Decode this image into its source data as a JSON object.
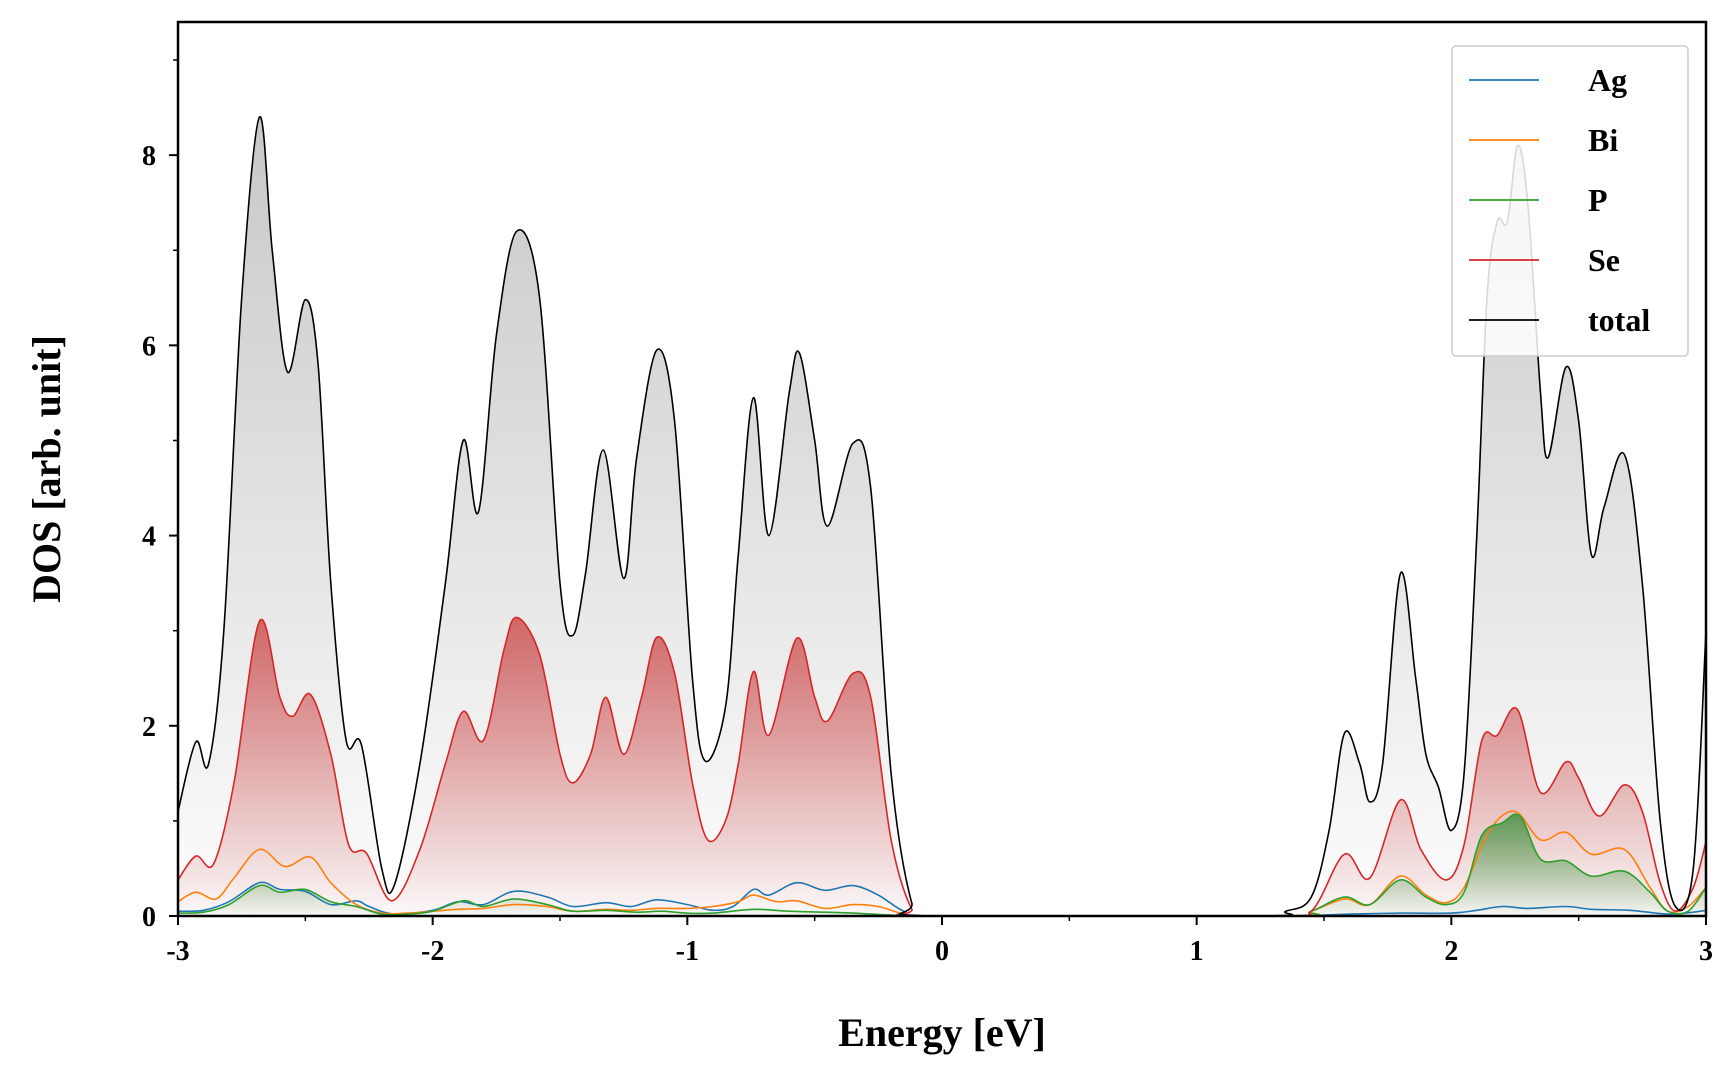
{
  "chart_data": {
    "type": "area",
    "xlabel": "Energy [eV]",
    "ylabel": "DOS [arb. unit]",
    "xlim": [
      -3,
      3
    ],
    "ylim": [
      0,
      9.4
    ],
    "x_ticks": [
      -3,
      -2,
      -1,
      0,
      1,
      2,
      3
    ],
    "x_tick_labels": [
      "-3",
      "-2",
      "-1",
      "0",
      "1",
      "2",
      "3"
    ],
    "y_ticks": [
      0,
      2,
      4,
      6,
      8
    ],
    "y_tick_labels": [
      "0",
      "2",
      "4",
      "6",
      "8"
    ],
    "grid": false,
    "legend_position": "top-right",
    "series": [
      {
        "name": "Ag",
        "color": "#1f77b4",
        "filled": false,
        "points": [
          [
            -3.0,
            0.05
          ],
          [
            -2.9,
            0.06
          ],
          [
            -2.8,
            0.15
          ],
          [
            -2.68,
            0.35
          ],
          [
            -2.6,
            0.28
          ],
          [
            -2.5,
            0.26
          ],
          [
            -2.4,
            0.12
          ],
          [
            -2.3,
            0.16
          ],
          [
            -2.25,
            0.1
          ],
          [
            -2.15,
            0.02
          ],
          [
            -2.0,
            0.06
          ],
          [
            -1.9,
            0.15
          ],
          [
            -1.8,
            0.12
          ],
          [
            -1.68,
            0.26
          ],
          [
            -1.55,
            0.2
          ],
          [
            -1.45,
            0.1
          ],
          [
            -1.32,
            0.14
          ],
          [
            -1.22,
            0.1
          ],
          [
            -1.12,
            0.17
          ],
          [
            -1.0,
            0.12
          ],
          [
            -0.9,
            0.06
          ],
          [
            -0.82,
            0.1
          ],
          [
            -0.74,
            0.28
          ],
          [
            -0.68,
            0.22
          ],
          [
            -0.57,
            0.35
          ],
          [
            -0.46,
            0.27
          ],
          [
            -0.35,
            0.32
          ],
          [
            -0.25,
            0.22
          ],
          [
            -0.15,
            0.05
          ],
          [
            -0.05,
            0.0
          ],
          [
            1.3,
            0.0
          ],
          [
            1.5,
            0.01
          ],
          [
            1.6,
            0.02
          ],
          [
            1.8,
            0.03
          ],
          [
            2.0,
            0.03
          ],
          [
            2.1,
            0.06
          ],
          [
            2.2,
            0.1
          ],
          [
            2.3,
            0.08
          ],
          [
            2.45,
            0.1
          ],
          [
            2.55,
            0.07
          ],
          [
            2.7,
            0.06
          ],
          [
            2.85,
            0.02
          ],
          [
            2.95,
            0.04
          ],
          [
            3.0,
            0.06
          ]
        ]
      },
      {
        "name": "Bi",
        "color": "#ff7f0e",
        "filled": false,
        "points": [
          [
            -3.0,
            0.15
          ],
          [
            -2.93,
            0.25
          ],
          [
            -2.85,
            0.18
          ],
          [
            -2.78,
            0.4
          ],
          [
            -2.68,
            0.7
          ],
          [
            -2.58,
            0.52
          ],
          [
            -2.48,
            0.62
          ],
          [
            -2.4,
            0.35
          ],
          [
            -2.3,
            0.12
          ],
          [
            -2.2,
            0.03
          ],
          [
            -2.1,
            0.03
          ],
          [
            -2.0,
            0.05
          ],
          [
            -1.9,
            0.07
          ],
          [
            -1.8,
            0.08
          ],
          [
            -1.68,
            0.12
          ],
          [
            -1.55,
            0.1
          ],
          [
            -1.45,
            0.05
          ],
          [
            -1.32,
            0.07
          ],
          [
            -1.22,
            0.06
          ],
          [
            -1.12,
            0.08
          ],
          [
            -1.0,
            0.08
          ],
          [
            -0.9,
            0.1
          ],
          [
            -0.8,
            0.15
          ],
          [
            -0.74,
            0.22
          ],
          [
            -0.65,
            0.15
          ],
          [
            -0.57,
            0.16
          ],
          [
            -0.46,
            0.08
          ],
          [
            -0.35,
            0.12
          ],
          [
            -0.25,
            0.1
          ],
          [
            -0.15,
            0.02
          ],
          [
            -0.05,
            0.0
          ],
          [
            1.35,
            0.0
          ],
          [
            1.45,
            0.05
          ],
          [
            1.58,
            0.18
          ],
          [
            1.68,
            0.12
          ],
          [
            1.8,
            0.42
          ],
          [
            1.9,
            0.22
          ],
          [
            1.98,
            0.14
          ],
          [
            2.05,
            0.3
          ],
          [
            2.15,
            0.9
          ],
          [
            2.25,
            1.1
          ],
          [
            2.35,
            0.8
          ],
          [
            2.45,
            0.88
          ],
          [
            2.55,
            0.65
          ],
          [
            2.68,
            0.7
          ],
          [
            2.78,
            0.3
          ],
          [
            2.85,
            0.05
          ],
          [
            2.93,
            0.1
          ],
          [
            3.0,
            0.3
          ]
        ]
      },
      {
        "name": "P",
        "color": "#2ca02c",
        "filled": true,
        "points": [
          [
            -3.0,
            0.03
          ],
          [
            -2.9,
            0.04
          ],
          [
            -2.8,
            0.12
          ],
          [
            -2.68,
            0.32
          ],
          [
            -2.6,
            0.25
          ],
          [
            -2.5,
            0.28
          ],
          [
            -2.4,
            0.15
          ],
          [
            -2.3,
            0.1
          ],
          [
            -2.2,
            0.02
          ],
          [
            -2.1,
            0.02
          ],
          [
            -2.0,
            0.05
          ],
          [
            -1.88,
            0.16
          ],
          [
            -1.8,
            0.1
          ],
          [
            -1.68,
            0.18
          ],
          [
            -1.55,
            0.12
          ],
          [
            -1.45,
            0.05
          ],
          [
            -1.32,
            0.06
          ],
          [
            -1.2,
            0.04
          ],
          [
            -1.1,
            0.05
          ],
          [
            -1.0,
            0.03
          ],
          [
            -0.9,
            0.03
          ],
          [
            -0.74,
            0.07
          ],
          [
            -0.6,
            0.05
          ],
          [
            -0.46,
            0.04
          ],
          [
            -0.35,
            0.03
          ],
          [
            -0.2,
            0.01
          ],
          [
            -0.05,
            0.0
          ],
          [
            1.35,
            0.0
          ],
          [
            1.45,
            0.05
          ],
          [
            1.58,
            0.2
          ],
          [
            1.68,
            0.12
          ],
          [
            1.8,
            0.38
          ],
          [
            1.9,
            0.2
          ],
          [
            1.98,
            0.12
          ],
          [
            2.05,
            0.25
          ],
          [
            2.12,
            0.85
          ],
          [
            2.2,
            0.98
          ],
          [
            2.27,
            1.05
          ],
          [
            2.35,
            0.6
          ],
          [
            2.45,
            0.58
          ],
          [
            2.55,
            0.42
          ],
          [
            2.68,
            0.47
          ],
          [
            2.78,
            0.25
          ],
          [
            2.85,
            0.05
          ],
          [
            2.93,
            0.05
          ],
          [
            3.0,
            0.3
          ]
        ]
      },
      {
        "name": "Se",
        "color": "#d62728",
        "filled": true,
        "points": [
          [
            -3.0,
            0.38
          ],
          [
            -2.93,
            0.63
          ],
          [
            -2.86,
            0.55
          ],
          [
            -2.78,
            1.4
          ],
          [
            -2.68,
            3.1
          ],
          [
            -2.6,
            2.3
          ],
          [
            -2.55,
            2.1
          ],
          [
            -2.48,
            2.33
          ],
          [
            -2.4,
            1.7
          ],
          [
            -2.33,
            0.75
          ],
          [
            -2.26,
            0.66
          ],
          [
            -2.16,
            0.16
          ],
          [
            -2.05,
            0.7
          ],
          [
            -1.95,
            1.6
          ],
          [
            -1.88,
            2.15
          ],
          [
            -1.8,
            1.85
          ],
          [
            -1.72,
            2.8
          ],
          [
            -1.67,
            3.14
          ],
          [
            -1.58,
            2.75
          ],
          [
            -1.5,
            1.7
          ],
          [
            -1.45,
            1.4
          ],
          [
            -1.38,
            1.7
          ],
          [
            -1.32,
            2.3
          ],
          [
            -1.25,
            1.7
          ],
          [
            -1.18,
            2.3
          ],
          [
            -1.12,
            2.93
          ],
          [
            -1.05,
            2.55
          ],
          [
            -0.98,
            1.4
          ],
          [
            -0.92,
            0.8
          ],
          [
            -0.85,
            1.0
          ],
          [
            -0.8,
            1.6
          ],
          [
            -0.74,
            2.57
          ],
          [
            -0.68,
            1.9
          ],
          [
            -0.57,
            2.92
          ],
          [
            -0.5,
            2.3
          ],
          [
            -0.45,
            2.05
          ],
          [
            -0.35,
            2.55
          ],
          [
            -0.28,
            2.3
          ],
          [
            -0.2,
            0.8
          ],
          [
            -0.12,
            0.08
          ],
          [
            -0.05,
            0.0
          ],
          [
            1.3,
            0.0
          ],
          [
            1.45,
            0.05
          ],
          [
            1.58,
            0.65
          ],
          [
            1.68,
            0.4
          ],
          [
            1.8,
            1.22
          ],
          [
            1.88,
            0.7
          ],
          [
            1.98,
            0.38
          ],
          [
            2.05,
            0.75
          ],
          [
            2.12,
            1.85
          ],
          [
            2.18,
            1.9
          ],
          [
            2.26,
            2.17
          ],
          [
            2.35,
            1.3
          ],
          [
            2.45,
            1.62
          ],
          [
            2.5,
            1.45
          ],
          [
            2.58,
            1.05
          ],
          [
            2.68,
            1.38
          ],
          [
            2.75,
            1.1
          ],
          [
            2.82,
            0.35
          ],
          [
            2.88,
            0.05
          ],
          [
            2.95,
            0.3
          ],
          [
            3.0,
            0.78
          ]
        ]
      },
      {
        "name": "total",
        "color": "#000000",
        "filled": true,
        "points": [
          [
            -3.0,
            1.1
          ],
          [
            -2.93,
            1.83
          ],
          [
            -2.88,
            1.6
          ],
          [
            -2.82,
            3.0
          ],
          [
            -2.75,
            6.5
          ],
          [
            -2.68,
            8.4
          ],
          [
            -2.63,
            7.0
          ],
          [
            -2.57,
            5.72
          ],
          [
            -2.5,
            6.48
          ],
          [
            -2.45,
            5.8
          ],
          [
            -2.4,
            3.5
          ],
          [
            -2.34,
            1.85
          ],
          [
            -2.28,
            1.8
          ],
          [
            -2.2,
            0.5
          ],
          [
            -2.15,
            0.33
          ],
          [
            -2.05,
            1.6
          ],
          [
            -1.95,
            3.5
          ],
          [
            -1.88,
            5.0
          ],
          [
            -1.82,
            4.25
          ],
          [
            -1.75,
            6.1
          ],
          [
            -1.67,
            7.2
          ],
          [
            -1.58,
            6.5
          ],
          [
            -1.5,
            3.5
          ],
          [
            -1.45,
            2.95
          ],
          [
            -1.4,
            3.6
          ],
          [
            -1.33,
            4.9
          ],
          [
            -1.25,
            3.55
          ],
          [
            -1.2,
            4.8
          ],
          [
            -1.12,
            5.95
          ],
          [
            -1.05,
            5.2
          ],
          [
            -0.98,
            2.5
          ],
          [
            -0.93,
            1.63
          ],
          [
            -0.85,
            2.2
          ],
          [
            -0.8,
            3.8
          ],
          [
            -0.74,
            5.45
          ],
          [
            -0.68,
            4.0
          ],
          [
            -0.6,
            5.5
          ],
          [
            -0.56,
            5.92
          ],
          [
            -0.5,
            5.0
          ],
          [
            -0.45,
            4.1
          ],
          [
            -0.35,
            4.97
          ],
          [
            -0.28,
            4.5
          ],
          [
            -0.2,
            1.5
          ],
          [
            -0.12,
            0.15
          ],
          [
            -0.05,
            0.0
          ],
          [
            1.25,
            0.0
          ],
          [
            1.35,
            0.05
          ],
          [
            1.45,
            0.2
          ],
          [
            1.52,
            0.9
          ],
          [
            1.58,
            1.92
          ],
          [
            1.64,
            1.6
          ],
          [
            1.68,
            1.2
          ],
          [
            1.73,
            1.6
          ],
          [
            1.8,
            3.6
          ],
          [
            1.86,
            2.5
          ],
          [
            1.9,
            1.7
          ],
          [
            1.95,
            1.35
          ],
          [
            2.0,
            0.9
          ],
          [
            2.05,
            1.5
          ],
          [
            2.1,
            4.0
          ],
          [
            2.14,
            6.5
          ],
          [
            2.18,
            7.3
          ],
          [
            2.22,
            7.3
          ],
          [
            2.26,
            8.1
          ],
          [
            2.3,
            7.5
          ],
          [
            2.35,
            5.5
          ],
          [
            2.38,
            4.82
          ],
          [
            2.45,
            5.77
          ],
          [
            2.5,
            5.2
          ],
          [
            2.55,
            3.8
          ],
          [
            2.6,
            4.3
          ],
          [
            2.68,
            4.85
          ],
          [
            2.75,
            3.5
          ],
          [
            2.82,
            1.0
          ],
          [
            2.88,
            0.1
          ],
          [
            2.95,
            0.5
          ],
          [
            3.0,
            3.0
          ]
        ]
      }
    ]
  }
}
